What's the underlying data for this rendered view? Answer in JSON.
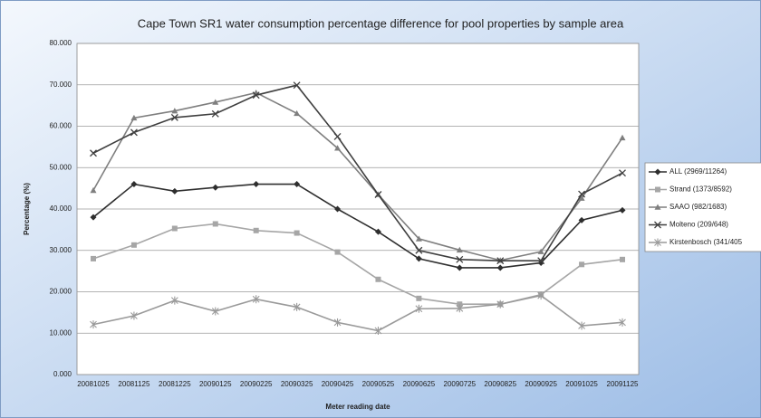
{
  "chart_data": {
    "type": "line",
    "title": "Cape Town SR1 water consumption percentage difference for pool properties by sample area",
    "x_label": "Meter reading date",
    "y_label": "Percentage (%)",
    "categories": [
      "20081025",
      "20081125",
      "20081225",
      "20090125",
      "20090225",
      "20090325",
      "20090425",
      "20090525",
      "20090625",
      "20090725",
      "20090825",
      "20090925",
      "20091025",
      "20091125"
    ],
    "ylim": [
      0,
      80
    ],
    "yticks": [
      {
        "value": 0,
        "label": "0.000"
      },
      {
        "value": 10,
        "label": "10.000"
      },
      {
        "value": 20,
        "label": "20.000"
      },
      {
        "value": 30,
        "label": "30.000"
      },
      {
        "value": 40,
        "label": "40.000"
      },
      {
        "value": 50,
        "label": "50.000"
      },
      {
        "value": 60,
        "label": "60.000"
      },
      {
        "value": 70,
        "label": "70.000"
      },
      {
        "value": 80,
        "label": "80.000"
      }
    ],
    "grid": true,
    "legend": "right",
    "series": [
      {
        "name": "ALL (2969/11264)",
        "color": "#2e2e2e",
        "marker": "diamond",
        "values": [
          38,
          46,
          44.3,
          45.2,
          46,
          46,
          40,
          34.5,
          28,
          25.8,
          25.8,
          27,
          37.3,
          39.7
        ]
      },
      {
        "name": "Strand (1373/8592)",
        "color": "#a6a6a6",
        "marker": "square",
        "values": [
          28,
          31.3,
          35.3,
          36.4,
          34.8,
          34.2,
          29.6,
          23,
          18.4,
          17,
          17,
          19.3,
          26.6,
          27.8
        ]
      },
      {
        "name": "SAAO (982/1683)",
        "color": "#7f7f7f",
        "marker": "triangle",
        "values": [
          44.5,
          62,
          63.7,
          65.8,
          68.1,
          63.1,
          54.7,
          43.5,
          32.8,
          30.1,
          27.6,
          29.7,
          42.6,
          57.2
        ]
      },
      {
        "name": "Molteno (209/648)",
        "color": "#3f3f3f",
        "marker": "x",
        "values": [
          53.5,
          58.5,
          62.1,
          63,
          67.5,
          69.9,
          57.5,
          43.5,
          30,
          27.8,
          27.5,
          27.5,
          43.6,
          48.7
        ]
      },
      {
        "name": "Kirstenbosch (341/405",
        "color": "#9a9a9a",
        "marker": "star",
        "values": [
          12.1,
          14.2,
          17.9,
          15.3,
          18.2,
          16.3,
          12.6,
          10.6,
          15.9,
          16,
          17,
          19.1,
          11.8,
          12.6
        ]
      }
    ]
  }
}
